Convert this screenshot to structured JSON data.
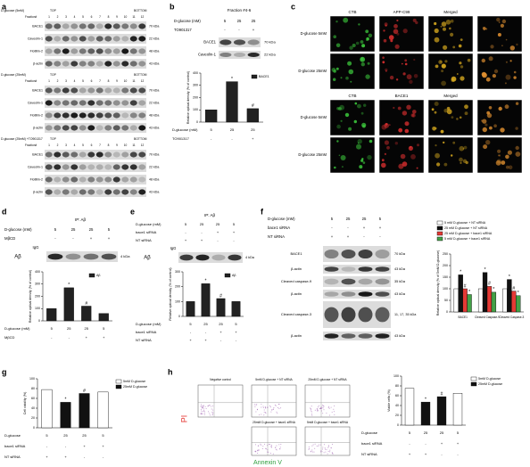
{
  "figure": {
    "a": {
      "label": "a",
      "top": "TOP",
      "bottom": "BOTTOM",
      "fraction": "Fraction#",
      "lanes": [
        "1",
        "2",
        "3",
        "4",
        "5",
        "6",
        "7",
        "8",
        "9",
        "10",
        "11",
        "12"
      ],
      "sets": [
        {
          "condition": "D-glucose (5mM)",
          "proteins": [
            "BACE1",
            "Caveolin-1",
            "Flotillin-2",
            "β-actin"
          ],
          "sizes": [
            "70 kDa",
            "22 kDa",
            "48 kDa",
            "43 kDa"
          ]
        },
        {
          "condition": "D-glucose (25mM)",
          "proteins": [
            "BACE1",
            "Caveolin-1",
            "Flotillin-2",
            "β-actin"
          ],
          "sizes": [
            "70 kDa",
            "22 kDa",
            "48 kDa",
            "43 kDa"
          ]
        },
        {
          "condition": "D-glucose (25mM) +TO901317",
          "proteins": [
            "BACE1",
            "Caveolin-1",
            "Flotillin-2",
            "β-actin"
          ],
          "sizes": [
            "70 kDa",
            "22 kDa",
            "48 kDa",
            "43 kDa"
          ]
        }
      ]
    },
    "b": {
      "label": "b",
      "fraction": "Fraction #4-6",
      "rows": [
        {
          "label": "D-glucose (mM)",
          "cells": [
            "5",
            "25",
            "25"
          ]
        },
        {
          "label": "TO901317",
          "cells": [
            "-",
            "-",
            "+"
          ]
        }
      ],
      "blots": [
        {
          "name": "BACE1",
          "size": "70 kDa"
        },
        {
          "name": "Caveolin-1",
          "size": "22 kDa"
        }
      ],
      "chart": {
        "type": "bar",
        "ylabel": "Relative optical density (% of control)",
        "ylim": [
          0,
          400
        ],
        "yticks": [
          0,
          100,
          200,
          300,
          400
        ],
        "values": [
          100,
          330,
          110
        ],
        "colors": [
          "#222222",
          "#222222",
          "#222222"
        ],
        "markers": [
          null,
          "*",
          "#"
        ],
        "legend": [
          {
            "name": "BACE1",
            "color": "#222222"
          }
        ],
        "xrows": [
          {
            "label": "D-glucose (mM)",
            "cells": [
              "5",
              "25",
              "25"
            ]
          },
          {
            "label": "TO901317",
            "cells": [
              "-",
              "-",
              "+"
            ]
          }
        ]
      }
    },
    "c": {
      "label": "c",
      "sets": [
        {
          "headers": [
            "CTB",
            "APP-C99",
            "Merged"
          ],
          "rows": [
            "D-glucose 5mM",
            "D-glucose 25mM"
          ]
        },
        {
          "headers": [
            "CTB",
            "BACE1",
            "Merged"
          ],
          "rows": [
            "D-glucose 5mM",
            "D-glucose 25mM"
          ]
        }
      ]
    },
    "d": {
      "label": "d",
      "ip": "IP: Aβ",
      "rows": [
        {
          "label": "D-glucose (mM)",
          "cells": [
            "5",
            "25",
            "25",
            "5"
          ]
        },
        {
          "label": "MβCD",
          "cells": [
            "-",
            "-",
            "+",
            "+"
          ]
        }
      ],
      "igg": "IgG",
      "blot": {
        "name": "Aβ",
        "size": "4 kDa"
      },
      "chart": {
        "type": "bar",
        "ylabel": "Relative optical density (% of control)",
        "ylim": [
          0,
          400
        ],
        "yticks": [
          0,
          100,
          200,
          300,
          400
        ],
        "values": [
          100,
          270,
          120,
          60
        ],
        "colors": [
          "#222222",
          "#222222",
          "#222222",
          "#222222"
        ],
        "markers": [
          null,
          "*",
          "#",
          null
        ],
        "legend": [
          {
            "name": "Aβ",
            "color": "#222222"
          }
        ],
        "xrows": [
          {
            "label": "D-glucose (mM)",
            "cells": [
              "5",
              "25",
              "25",
              "5"
            ]
          },
          {
            "label": "MβCD",
            "cells": [
              "-",
              "-",
              "+",
              "+"
            ]
          }
        ]
      }
    },
    "e": {
      "label": "e",
      "ip": "IP: Aβ",
      "rows": [
        {
          "label": "D-glucose (mM)",
          "cells": [
            "5",
            "25",
            "25",
            "5"
          ]
        },
        {
          "label": "bace1 siRNA",
          "cells": [
            "-",
            "-",
            "+",
            "+"
          ]
        },
        {
          "label": "NT siRNA",
          "cells": [
            "+",
            "+",
            "-",
            "-"
          ]
        }
      ],
      "igg": "IgG",
      "blot": {
        "name": "Aβ",
        "size": "4 kDa"
      },
      "chart": {
        "type": "bar",
        "ylabel": "Relative optical density (% of control)",
        "ylim": [
          0,
          300
        ],
        "yticks": [
          0,
          100,
          200,
          300
        ],
        "values": [
          100,
          220,
          120,
          100
        ],
        "colors": [
          "#222222",
          "#222222",
          "#222222",
          "#222222"
        ],
        "markers": [
          null,
          "*",
          "#",
          null
        ],
        "legend": [
          {
            "name": "Aβ",
            "color": "#222222"
          }
        ],
        "xrows": [
          {
            "label": "D-glucose (mM)",
            "cells": [
              "5",
              "25",
              "25",
              "5"
            ]
          },
          {
            "label": "bace1 siRNA",
            "cells": [
              "-",
              "-",
              "+",
              "+"
            ]
          },
          {
            "label": "NT siRNA",
            "cells": [
              "+",
              "+",
              "-",
              "-"
            ]
          }
        ]
      }
    },
    "f": {
      "label": "f",
      "rows": [
        {
          "label": "D-glucose (mM)",
          "cells": [
            "5",
            "25",
            "25",
            "5"
          ]
        },
        {
          "label": "bace1 siRNA",
          "cells": [
            "-",
            "-",
            "+",
            "+"
          ]
        },
        {
          "label": "NT siRNA",
          "cells": [
            "+",
            "+",
            "-",
            "-"
          ]
        }
      ],
      "blots": [
        {
          "name": "BACE1",
          "size": "70 kDa"
        },
        {
          "name": "β-actin",
          "size": "43 kDa"
        },
        {
          "name": "Cleaved caspase-9",
          "size": "35 kDa"
        },
        {
          "name": "β-actin",
          "size": "43 kDa"
        },
        {
          "name": "Cleaved caspase-3",
          "size": "11, 17, 35 kDa"
        },
        {
          "name": "β-actin",
          "size": "43 kDa"
        }
      ],
      "chart": {
        "type": "grouped-bar",
        "ylabel": "Relative optical density (% of 5mM D-glucose)",
        "ylim": [
          0,
          250
        ],
        "yticks": [
          0,
          50,
          100,
          150,
          200,
          250
        ],
        "categories": [
          "BACE1",
          "Cleaved Caspase-9",
          "Cleaved Caspase-3"
        ],
        "series": [
          {
            "name": "5 mM D-glucose + NT siRNA",
            "color": "#ffffff",
            "values": [
              100,
              100,
              100
            ]
          },
          {
            "name": "25 mM D-glucose + NT siRNA",
            "color": "#111111",
            "values": [
              160,
              170,
              140
            ],
            "markers": [
              "*",
              "*",
              "*"
            ]
          },
          {
            "name": "25 mM D-glucose + bace1 siRNA",
            "color": "#e53935",
            "values": [
              100,
              110,
              90
            ],
            "markers": [
              "#",
              "#",
              "#"
            ]
          },
          {
            "name": "5 mM D-glucose + bace1 siRNA",
            "color": "#43a047",
            "values": [
              75,
              85,
              70
            ],
            "markers": [
              "*",
              "*",
              "*"
            ]
          }
        ]
      }
    },
    "g": {
      "label": "g",
      "chart": {
        "type": "bar",
        "ylabel": "Cell viability (%)",
        "ylim": [
          0,
          100
        ],
        "yticks": [
          0,
          20,
          40,
          60,
          80,
          100
        ],
        "values": [
          78,
          52,
          70,
          73
        ],
        "colors": [
          "#ffffff",
          "#111111",
          "#111111",
          "#ffffff"
        ],
        "markers": [
          null,
          "*",
          "#",
          null
        ],
        "legend": [
          {
            "name": "5mM D-glucose",
            "color": "#ffffff"
          },
          {
            "name": "25mM D-glucose",
            "color": "#111111"
          }
        ],
        "xrows": [
          {
            "label": "D-glucose",
            "cells": [
              "5",
              "25",
              "25",
              "5"
            ]
          },
          {
            "label": "bace1 siRNA",
            "cells": [
              "-",
              "-",
              "+",
              "+"
            ]
          },
          {
            "label": "NT siRNA",
            "cells": [
              "+",
              "+",
              "-",
              "-"
            ]
          }
        ]
      }
    },
    "h": {
      "label": "h",
      "y_axis": "PI",
      "x_axis": "Annexin V",
      "plots": [
        "Negative control",
        "5mM D-glucose + NT siRNA",
        "25mM D-glucose + NT siRNA",
        "25mM D-glucose + bace1 siRNA",
        "5mM D-glucose + bace1 siRNA"
      ],
      "chart": {
        "type": "bar",
        "ylabel": "Viable cells (%)",
        "ylim": [
          0,
          100
        ],
        "yticks": [
          0,
          20,
          40,
          60,
          80,
          100
        ],
        "values": [
          75,
          47,
          58,
          65
        ],
        "colors": [
          "#ffffff",
          "#111111",
          "#111111",
          "#ffffff"
        ],
        "markers": [
          null,
          "*",
          "#",
          null
        ],
        "legend": [
          {
            "name": "5mM D-glucose",
            "color": "#ffffff"
          },
          {
            "name": "25mM D-glucose",
            "color": "#111111"
          }
        ],
        "xrows": [
          {
            "label": "D-glucose",
            "cells": [
              "5",
              "25",
              "25",
              "5"
            ]
          },
          {
            "label": "bace1 siRNA",
            "cells": [
              "-",
              "-",
              "+",
              "+"
            ]
          },
          {
            "label": "NT siRNA",
            "cells": [
              "+",
              "+",
              "-",
              "-"
            ]
          }
        ]
      }
    }
  }
}
